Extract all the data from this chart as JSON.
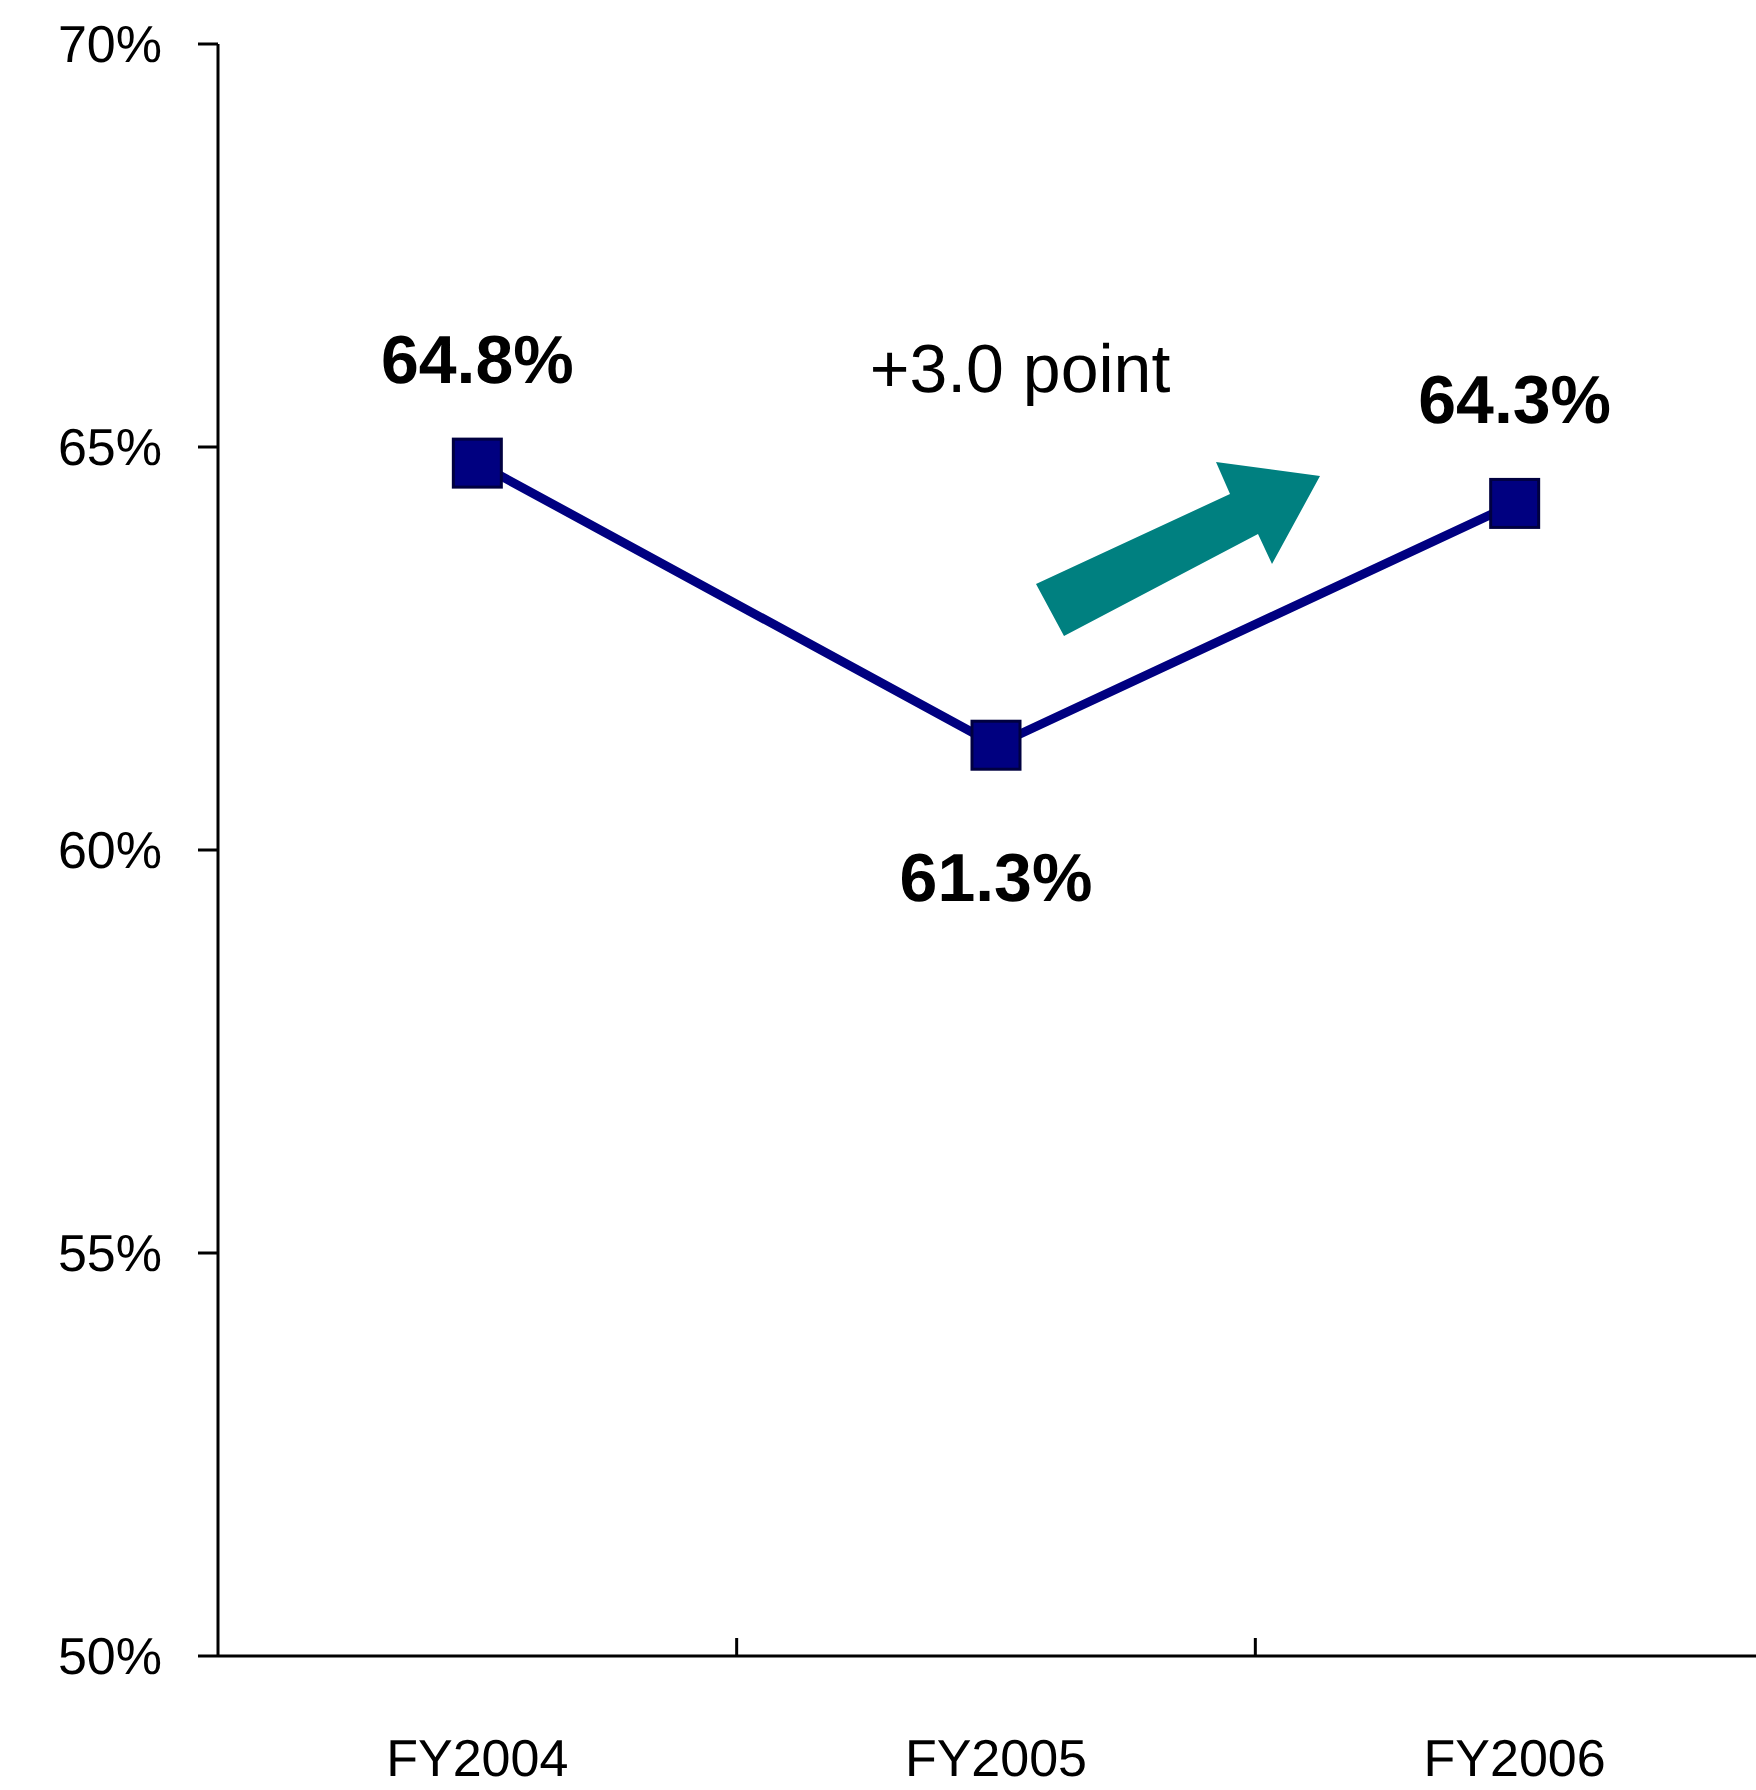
{
  "chart_data": {
    "type": "line",
    "categories": [
      "FY2004",
      "FY2005",
      "FY2006"
    ],
    "series": [
      {
        "color": "#000080",
        "values": [
          64.8,
          61.3,
          64.3
        ],
        "value_labels": [
          "64.8%",
          "61.3%",
          "64.3%"
        ]
      }
    ],
    "ylim": [
      50,
      70
    ],
    "yticks": [
      {
        "value": 50,
        "label": "50%"
      },
      {
        "value": 55,
        "label": "55%"
      },
      {
        "value": 60,
        "label": "60%"
      },
      {
        "value": 65,
        "label": "65%"
      },
      {
        "value": 70,
        "label": "70%"
      }
    ],
    "marker": "square",
    "line_style": "solid",
    "annotations": [
      "+3.0 point"
    ]
  }
}
